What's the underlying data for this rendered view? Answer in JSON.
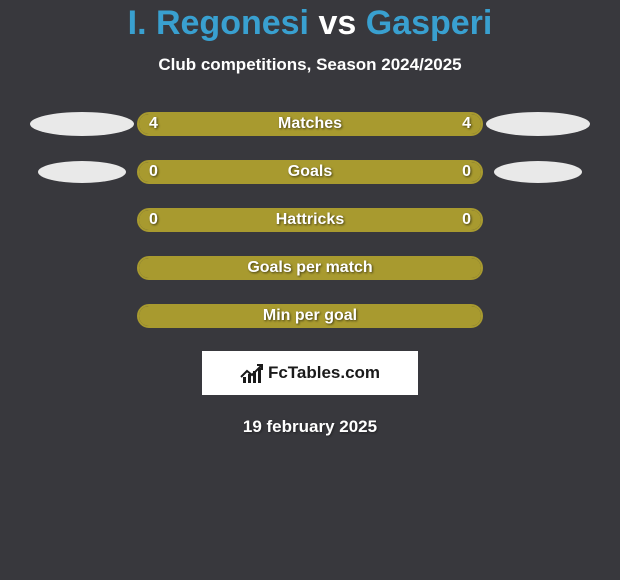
{
  "title": {
    "player1": "I. Regonesi",
    "vs": "vs",
    "player2": "Gasperi",
    "player1_color": "#39a0d0",
    "player2_color": "#39a0d0",
    "vs_color": "#ffffff"
  },
  "subtitle": "Club competitions, Season 2024/2025",
  "colors": {
    "background": "#38383d",
    "bar_fill": "#a89a2f",
    "bar_border": "#a89a2f",
    "ellipse": "#e9e9e9",
    "text": "#ffffff"
  },
  "rows": [
    {
      "label": "Matches",
      "left_value": "4",
      "right_value": "4",
      "left_pct": 50,
      "right_pct": 50,
      "show_left_badge": true,
      "show_right_badge": true,
      "badge_size": "large"
    },
    {
      "label": "Goals",
      "left_value": "0",
      "right_value": "0",
      "left_pct": 50,
      "right_pct": 50,
      "show_left_badge": true,
      "show_right_badge": true,
      "badge_size": "small"
    },
    {
      "label": "Hattricks",
      "left_value": "0",
      "right_value": "0",
      "left_pct": 50,
      "right_pct": 50,
      "show_left_badge": false,
      "show_right_badge": false
    },
    {
      "label": "Goals per match",
      "left_value": "",
      "right_value": "",
      "full_fill": true,
      "show_left_badge": false,
      "show_right_badge": false
    },
    {
      "label": "Min per goal",
      "left_value": "",
      "right_value": "",
      "full_fill": true,
      "show_left_badge": false,
      "show_right_badge": false
    }
  ],
  "logo_text": "FcTables.com",
  "date": "19 february 2025"
}
